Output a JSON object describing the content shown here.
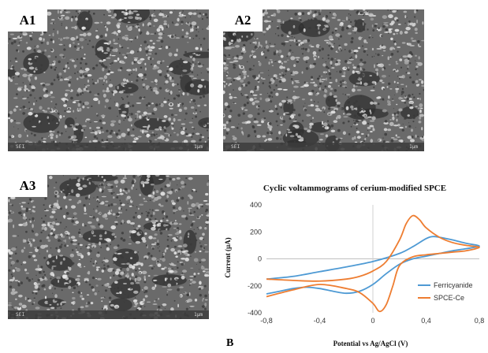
{
  "panels": [
    {
      "label": "A1",
      "caption": "SEI",
      "scale": "1µm"
    },
    {
      "label": "A2",
      "caption": "SEI",
      "scale": "1µm"
    },
    {
      "label": "A3",
      "caption": "SEI",
      "scale": "1µm"
    }
  ],
  "panel_b_label": "B",
  "chart_data": {
    "type": "line",
    "title": "Cyclic voltammograms of cerium-modified SPCE",
    "xlabel": "Potential vs Ag/AgCl (V)",
    "ylabel": "Current (µA)",
    "xlim": [
      -0.8,
      0.8
    ],
    "ylim": [
      -400,
      400
    ],
    "x_ticks": [
      "-0,8",
      "-0,4",
      "0",
      "0,4",
      "0,8"
    ],
    "y_ticks": [
      "400",
      "200",
      "0",
      "-200",
      "-400"
    ],
    "grid": "vertical line at x=0",
    "legend_position": "bottom-right",
    "series": [
      {
        "name": "Ferricyanide",
        "color": "#4e9ad4",
        "x": [
          -0.8,
          -0.6,
          -0.4,
          -0.2,
          0.0,
          0.2,
          0.3,
          0.4,
          0.45,
          0.5,
          0.6,
          0.7,
          0.8,
          0.7,
          0.6,
          0.5,
          0.4,
          0.3,
          0.2,
          0.1,
          0.0,
          -0.1,
          -0.2,
          -0.3,
          -0.4,
          -0.5,
          -0.6,
          -0.7,
          -0.8
        ],
        "y": [
          -150,
          -130,
          -95,
          -60,
          -20,
          40,
          90,
          150,
          165,
          160,
          140,
          115,
          95,
          75,
          60,
          40,
          20,
          0,
          -40,
          -110,
          -190,
          -240,
          -255,
          -240,
          -220,
          -210,
          -220,
          -240,
          -260
        ]
      },
      {
        "name": "SPCE-Ce",
        "color": "#ee7d31",
        "x": [
          -0.8,
          -0.6,
          -0.4,
          -0.2,
          -0.1,
          0.0,
          0.1,
          0.2,
          0.25,
          0.3,
          0.35,
          0.4,
          0.5,
          0.6,
          0.7,
          0.8,
          0.7,
          0.6,
          0.5,
          0.4,
          0.3,
          0.2,
          0.15,
          0.1,
          0.05,
          0.0,
          -0.1,
          -0.2,
          -0.4,
          -0.6,
          -0.8
        ],
        "y": [
          -150,
          -160,
          -165,
          -150,
          -130,
          -90,
          -20,
          140,
          260,
          320,
          290,
          230,
          160,
          120,
          100,
          85,
          60,
          50,
          40,
          30,
          15,
          -50,
          -200,
          -340,
          -390,
          -330,
          -250,
          -220,
          -190,
          -230,
          -280
        ]
      }
    ]
  }
}
